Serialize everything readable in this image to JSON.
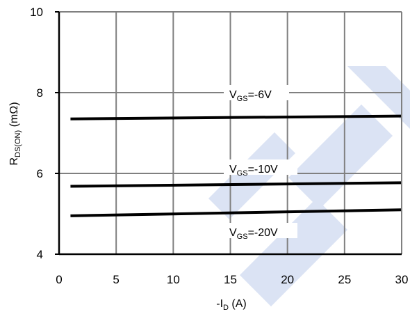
{
  "chart_data": {
    "type": "line",
    "xlabel": {
      "prefix": "-I",
      "sub": "D",
      "suffix": " (A)"
    },
    "ylabel": {
      "prefix": "R",
      "sub": "DS(ON)",
      "suffix": " (mΩ)"
    },
    "xlim": [
      0,
      30
    ],
    "ylim": [
      4,
      10
    ],
    "xticks": [
      0,
      5,
      10,
      15,
      20,
      25,
      30
    ],
    "yticks": [
      4,
      6,
      8,
      10
    ],
    "grid": true,
    "series": [
      {
        "name": {
          "prefix": "V",
          "sub": "GS",
          "suffix": "=-6V"
        },
        "x": [
          1,
          30
        ],
        "y": [
          7.35,
          7.42
        ]
      },
      {
        "name": {
          "prefix": "V",
          "sub": "GS",
          "suffix": "=-10V"
        },
        "x": [
          1,
          30
        ],
        "y": [
          5.68,
          5.77
        ]
      },
      {
        "name": {
          "prefix": "V",
          "sub": "GS",
          "suffix": "=-20V"
        },
        "x": [
          1,
          30
        ],
        "y": [
          4.95,
          5.1
        ]
      }
    ],
    "colors": {
      "line": "#000000",
      "grid": "#808080",
      "watermark": "#dbe3f4"
    }
  }
}
